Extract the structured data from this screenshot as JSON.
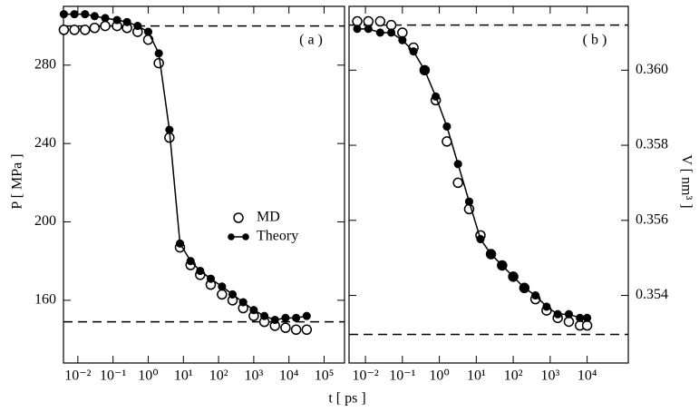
{
  "chart_data": [
    {
      "type": "line",
      "annotation": "( a )",
      "ylabel": "P [ MPa ]",
      "xlabel": "t [ ps ]",
      "xscale": "log",
      "legend": "center-right",
      "xlim": [
        0.0039,
        380000
      ],
      "ylim": [
        128,
        310
      ],
      "xticks": [
        {
          "value": 0.01,
          "label": "10⁻²"
        },
        {
          "value": 0.1,
          "label": "10⁻¹"
        },
        {
          "value": 1,
          "label": "10⁰"
        },
        {
          "value": 10,
          "label": "10¹"
        },
        {
          "value": 100,
          "label": "10²"
        },
        {
          "value": 1000,
          "label": "10³"
        },
        {
          "value": 10000,
          "label": "10⁴"
        },
        {
          "value": 100000,
          "label": "10⁵"
        }
      ],
      "yticks": [
        160,
        200,
        240,
        280
      ],
      "hlines": [
        300,
        149
      ],
      "x": [
        0.004,
        0.008,
        0.016,
        0.03,
        0.06,
        0.13,
        0.25,
        0.5,
        1,
        2,
        4,
        8,
        16,
        30,
        60,
        125,
        250,
        500,
        1000,
        2000,
        4000,
        8000,
        16000,
        32000
      ],
      "series": [
        {
          "name": "MD",
          "color": "#000000",
          "marker": "open",
          "line": false,
          "values": [
            298,
            298,
            298,
            299,
            300,
            300,
            299,
            297,
            293,
            281,
            243,
            187,
            178,
            173,
            168,
            163,
            160,
            156,
            152,
            149,
            147,
            146,
            145,
            145
          ]
        },
        {
          "name": "Theory",
          "color": "#000000",
          "marker": "filled",
          "line": true,
          "values": [
            306,
            306,
            306,
            305,
            304,
            303,
            302,
            300,
            297,
            286,
            247,
            189,
            180,
            175,
            171,
            167,
            163,
            159,
            155,
            152,
            150,
            151,
            151,
            152
          ]
        }
      ]
    },
    {
      "type": "line",
      "annotation": "( b )",
      "ylabel": "V [ nm³ ]",
      "xscale": "log",
      "yside": "right",
      "xlim": [
        0.0036,
        130000
      ],
      "ylim": [
        0.3522,
        0.3617
      ],
      "xticks": [
        {
          "value": 0.01,
          "label": "10⁻²"
        },
        {
          "value": 0.1,
          "label": "10⁻¹"
        },
        {
          "value": 1,
          "label": "10⁰"
        },
        {
          "value": 10,
          "label": "10¹"
        },
        {
          "value": 100,
          "label": "10²"
        },
        {
          "value": 1000,
          "label": "10³"
        },
        {
          "value": 10000,
          "label": "10⁴"
        }
      ],
      "yticks": [
        0.354,
        0.356,
        0.358,
        {
          "value": 0.36,
          "label": "0.360"
        }
      ],
      "hlines": [
        0.3612,
        0.35296
      ],
      "x": [
        0.006,
        0.012,
        0.025,
        0.05,
        0.1,
        0.2,
        0.4,
        0.8,
        1.6,
        3.2,
        6.4,
        13,
        25,
        50,
        100,
        200,
        400,
        800,
        1600,
        3200,
        6400,
        10000
      ],
      "series": [
        {
          "color": "#000000",
          "marker": "open",
          "line": false,
          "values": [
            0.3613,
            0.3613,
            0.3613,
            0.3612,
            0.361,
            0.3606,
            0.36,
            0.3592,
            0.3581,
            0.357,
            0.3563,
            0.3556,
            0.3551,
            0.3548,
            0.3545,
            0.3542,
            0.3539,
            0.3536,
            0.3534,
            0.3533,
            0.3532,
            0.3532
          ]
        },
        {
          "color": "#000000",
          "marker": "filled",
          "line": true,
          "values": [
            0.3611,
            0.3611,
            0.361,
            0.361,
            0.3608,
            0.3605,
            0.36,
            0.3593,
            0.3585,
            0.3575,
            0.3565,
            0.3555,
            0.3551,
            0.3548,
            0.3545,
            0.3542,
            0.354,
            0.3537,
            0.3535,
            0.3535,
            0.3534,
            0.3534
          ]
        }
      ]
    }
  ]
}
